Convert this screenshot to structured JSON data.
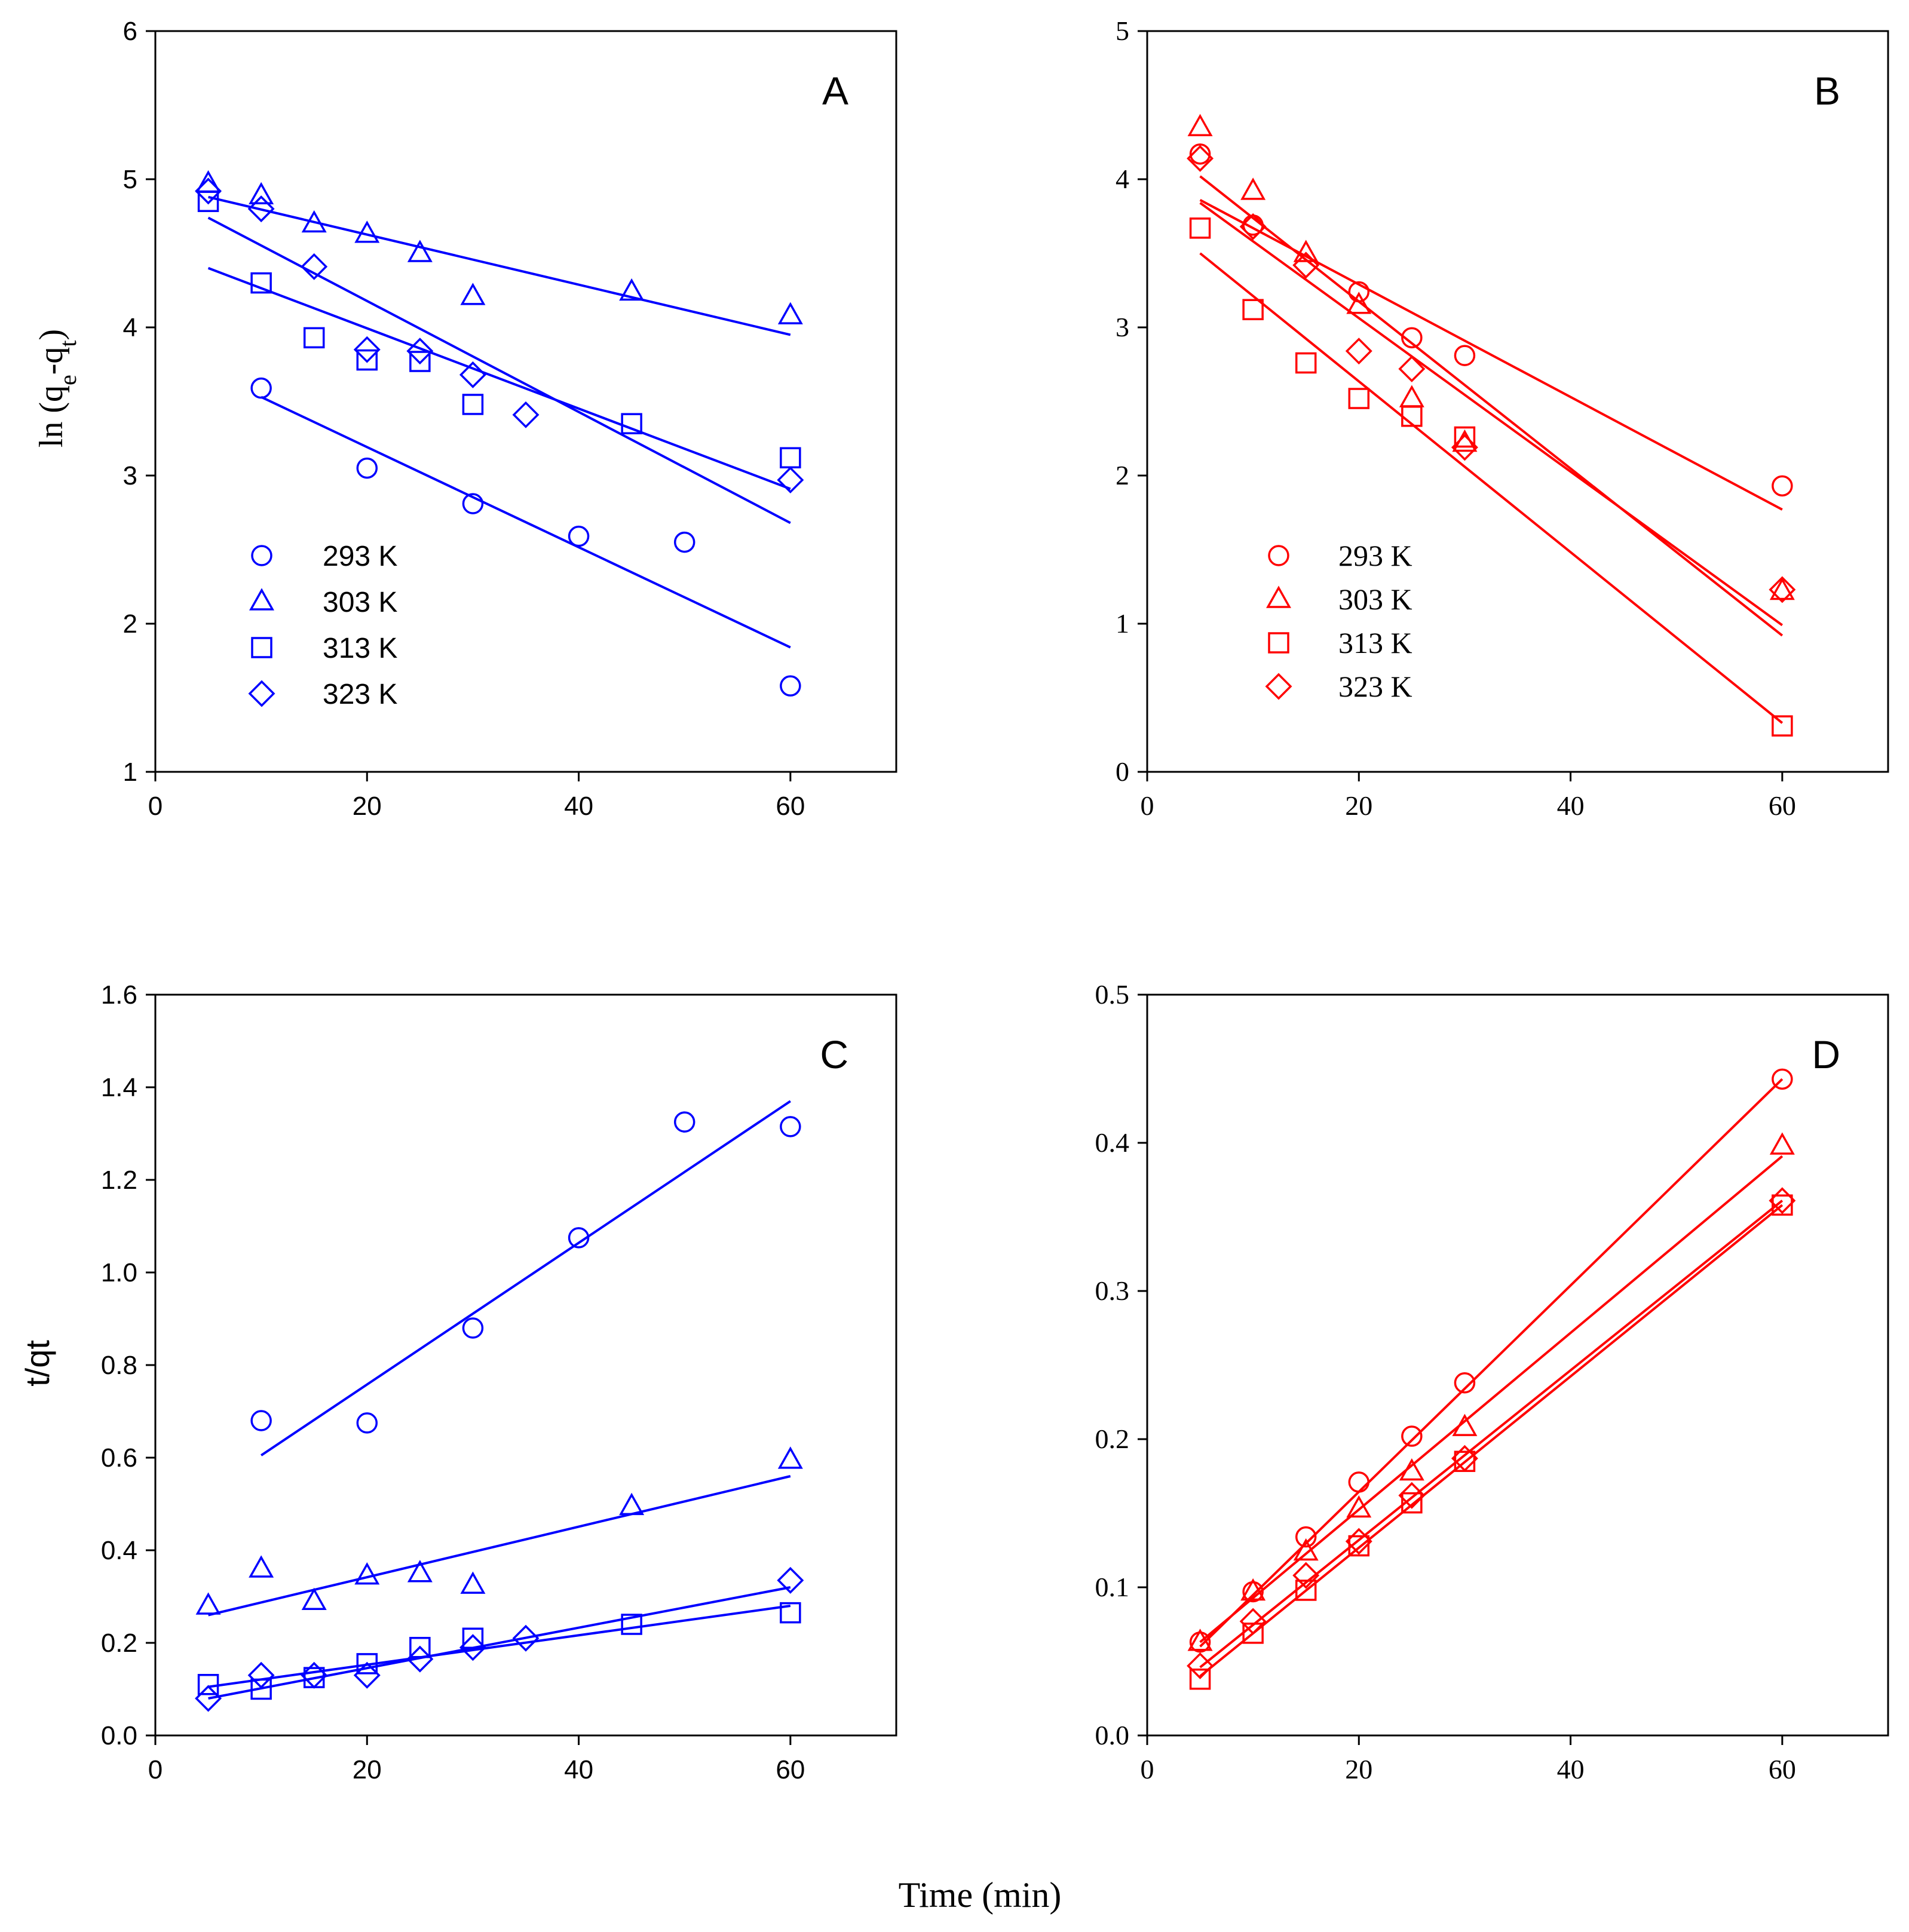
{
  "figure": {
    "xlabel": "Time (min)"
  },
  "chart_data": [
    {
      "id": "A",
      "type": "scatter",
      "panel_label": "A",
      "ylabel_pre": "ln (q",
      "ylabel_sub1": "e",
      "ylabel_mid": "-q",
      "ylabel_sub2": "t",
      "ylabel_post": ")",
      "xlim": [
        0,
        70
      ],
      "ylim": [
        1,
        6
      ],
      "xticks": [
        0,
        20,
        40,
        60
      ],
      "yticks": [
        1,
        2,
        3,
        4,
        5,
        6
      ],
      "ytick_labels": [
        "1",
        "2",
        "3",
        "4",
        "5",
        "6"
      ],
      "color": "#0000ff",
      "font_style": "sans",
      "legend_position": "lower-left",
      "series": [
        {
          "name": "293 K",
          "marker": "circle",
          "x": [
            10,
            20,
            30,
            40,
            50,
            60
          ],
          "y": [
            3.59,
            3.05,
            2.81,
            2.59,
            2.55,
            1.58
          ],
          "fit": [
            [
              10,
              3.53
            ],
            [
              60,
              1.84
            ]
          ]
        },
        {
          "name": "303 K",
          "marker": "triangle",
          "x": [
            5,
            10,
            15,
            20,
            25,
            30,
            45,
            60
          ],
          "y": [
            4.97,
            4.89,
            4.7,
            4.63,
            4.5,
            4.21,
            4.24,
            4.08
          ],
          "fit": [
            [
              5,
              4.88
            ],
            [
              60,
              3.95
            ]
          ]
        },
        {
          "name": "313 K",
          "marker": "square",
          "x": [
            5,
            10,
            15,
            20,
            25,
            30,
            45,
            60
          ],
          "y": [
            4.85,
            4.3,
            3.93,
            3.78,
            3.77,
            3.48,
            3.35,
            3.12
          ],
          "fit": [
            [
              5,
              4.4
            ],
            [
              60,
              2.91
            ]
          ]
        },
        {
          "name": "323 K",
          "marker": "diamond",
          "x": [
            5,
            10,
            15,
            20,
            25,
            30,
            35,
            60
          ],
          "y": [
            4.92,
            4.8,
            4.41,
            3.85,
            3.84,
            3.68,
            3.41,
            2.97
          ],
          "fit": [
            [
              5,
              4.74
            ],
            [
              60,
              2.68
            ]
          ]
        }
      ]
    },
    {
      "id": "B",
      "type": "scatter",
      "panel_label": "B",
      "xlim": [
        0,
        70
      ],
      "ylim": [
        0,
        5
      ],
      "xticks": [
        0,
        20,
        40,
        60
      ],
      "yticks": [
        0,
        1,
        2,
        3,
        4,
        5
      ],
      "ytick_labels": [
        "0",
        "1",
        "2",
        "3",
        "4",
        "5"
      ],
      "color": "#ff0000",
      "font_style": "serif",
      "legend_position": "lower-left",
      "series": [
        {
          "name": "293 K",
          "marker": "circle",
          "x": [
            5,
            10,
            20,
            25,
            30,
            60
          ],
          "y": [
            4.17,
            3.69,
            3.24,
            2.93,
            2.81,
            1.93
          ],
          "fit": [
            [
              5,
              3.86
            ],
            [
              60,
              1.77
            ]
          ]
        },
        {
          "name": "303 K",
          "marker": "triangle",
          "x": [
            5,
            10,
            15,
            20,
            25,
            30,
            60
          ],
          "y": [
            4.35,
            3.92,
            3.5,
            3.15,
            2.52,
            2.22,
            1.22
          ],
          "fit": [
            [
              5,
              4.02
            ],
            [
              60,
              0.92
            ]
          ]
        },
        {
          "name": "313 K",
          "marker": "square",
          "x": [
            5,
            10,
            15,
            20,
            25,
            30,
            60
          ],
          "y": [
            3.67,
            3.12,
            2.76,
            2.52,
            2.4,
            2.26,
            0.31
          ],
          "fit": [
            [
              5,
              3.5
            ],
            [
              60,
              0.33
            ]
          ]
        },
        {
          "name": "323 K",
          "marker": "diamond",
          "x": [
            5,
            10,
            15,
            20,
            25,
            30,
            60
          ],
          "y": [
            4.14,
            3.68,
            3.42,
            2.84,
            2.72,
            2.19,
            1.23
          ],
          "fit": [
            [
              5,
              3.84
            ],
            [
              60,
              0.99
            ]
          ]
        }
      ]
    },
    {
      "id": "C",
      "type": "scatter",
      "panel_label": "C",
      "ylabel": "t/qt",
      "xlim": [
        0,
        70
      ],
      "ylim": [
        0,
        1.6
      ],
      "xticks": [
        0,
        20,
        40,
        60
      ],
      "yticks": [
        0,
        0.2,
        0.4,
        0.6,
        0.8,
        1.0,
        1.2,
        1.4,
        1.6
      ],
      "ytick_labels": [
        "0.0",
        "0.2",
        "0.4",
        "0.6",
        "0.8",
        "1.0",
        "1.2",
        "1.4",
        "1.6"
      ],
      "color": "#0000ff",
      "font_style": "sans",
      "series": [
        {
          "name": "293 K",
          "marker": "circle",
          "x": [
            10,
            20,
            30,
            40,
            50,
            60
          ],
          "y": [
            0.68,
            0.675,
            0.88,
            1.075,
            1.325,
            1.315
          ],
          "fit": [
            [
              10,
              0.605
            ],
            [
              60,
              1.37
            ]
          ]
        },
        {
          "name": "303 K",
          "marker": "triangle",
          "x": [
            5,
            10,
            15,
            20,
            25,
            30,
            45,
            60
          ],
          "y": [
            0.28,
            0.36,
            0.29,
            0.345,
            0.35,
            0.325,
            0.495,
            0.595
          ],
          "fit": [
            [
              5,
              0.26
            ],
            [
              60,
              0.56
            ]
          ]
        },
        {
          "name": "313 K",
          "marker": "square",
          "x": [
            5,
            10,
            15,
            20,
            25,
            30,
            45,
            60
          ],
          "y": [
            0.11,
            0.1,
            0.125,
            0.155,
            0.19,
            0.21,
            0.24,
            0.265
          ],
          "fit": [
            [
              5,
              0.105
            ],
            [
              60,
              0.28
            ]
          ]
        },
        {
          "name": "323 K",
          "marker": "diamond",
          "x": [
            5,
            10,
            15,
            20,
            25,
            30,
            35,
            60
          ],
          "y": [
            0.08,
            0.13,
            0.13,
            0.13,
            0.165,
            0.19,
            0.21,
            0.335
          ],
          "fit": [
            [
              5,
              0.08
            ],
            [
              60,
              0.32
            ]
          ]
        }
      ]
    },
    {
      "id": "D",
      "type": "scatter",
      "panel_label": "D",
      "xlim": [
        0,
        70
      ],
      "ylim": [
        0,
        0.5
      ],
      "xticks": [
        0,
        20,
        40,
        60
      ],
      "yticks": [
        0,
        0.1,
        0.2,
        0.3,
        0.4,
        0.5
      ],
      "ytick_labels": [
        "0.0",
        "0.1",
        "0.2",
        "0.3",
        "0.4",
        "0.5"
      ],
      "color": "#ff0000",
      "font_style": "serif",
      "series": [
        {
          "name": "293 K",
          "marker": "circle",
          "x": [
            5,
            10,
            15,
            20,
            25,
            30,
            60
          ],
          "y": [
            0.063,
            0.097,
            0.134,
            0.171,
            0.202,
            0.238,
            0.443
          ],
          "fit": [
            [
              5,
              0.06
            ],
            [
              60,
              0.443
            ]
          ]
        },
        {
          "name": "303 K",
          "marker": "triangle",
          "x": [
            5,
            10,
            15,
            20,
            25,
            30,
            60
          ],
          "y": [
            0.063,
            0.097,
            0.124,
            0.153,
            0.178,
            0.208,
            0.398
          ],
          "fit": [
            [
              5,
              0.063
            ],
            [
              60,
              0.391
            ]
          ]
        },
        {
          "name": "313 K",
          "marker": "square",
          "x": [
            5,
            10,
            15,
            20,
            25,
            30,
            60
          ],
          "y": [
            0.038,
            0.069,
            0.098,
            0.128,
            0.157,
            0.185,
            0.358
          ],
          "fit": [
            [
              5,
              0.04
            ],
            [
              60,
              0.358
            ]
          ]
        },
        {
          "name": "323 K",
          "marker": "diamond",
          "x": [
            5,
            10,
            15,
            20,
            25,
            30,
            60
          ],
          "y": [
            0.047,
            0.077,
            0.108,
            0.131,
            0.162,
            0.187,
            0.361
          ],
          "fit": [
            [
              5,
              0.046
            ],
            [
              60,
              0.361
            ]
          ]
        }
      ]
    }
  ]
}
